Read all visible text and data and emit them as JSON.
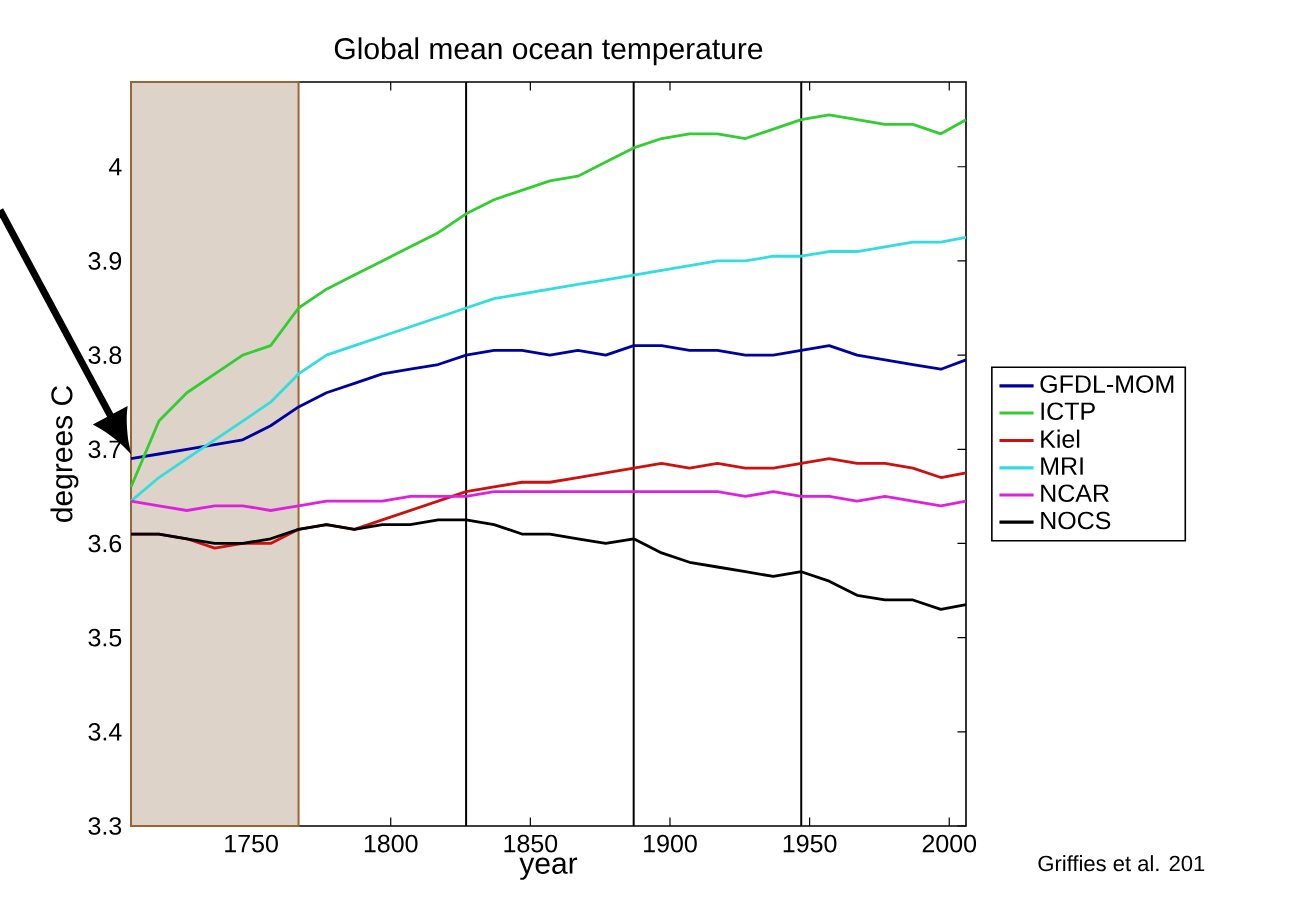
{
  "chart_data": {
    "type": "line",
    "title": "Global mean ocean temperature",
    "xlabel": "year",
    "ylabel": "degrees C",
    "x": [
      1707,
      1717,
      1727,
      1737,
      1747,
      1757,
      1767,
      1777,
      1787,
      1797,
      1807,
      1817,
      1827,
      1837,
      1847,
      1857,
      1867,
      1877,
      1887,
      1897,
      1907,
      1917,
      1927,
      1937,
      1947,
      1957,
      1967,
      1977,
      1987,
      1997,
      2006
    ],
    "series": [
      {
        "name": "GFDL-MOM",
        "color": "#0000a0",
        "values": [
          3.69,
          3.695,
          3.7,
          3.705,
          3.71,
          3.725,
          3.745,
          3.76,
          3.77,
          3.78,
          3.785,
          3.79,
          3.8,
          3.805,
          3.805,
          3.8,
          3.805,
          3.8,
          3.81,
          3.81,
          3.805,
          3.805,
          3.8,
          3.8,
          3.805,
          3.81,
          3.8,
          3.795,
          3.79,
          3.785,
          3.795
        ]
      },
      {
        "name": "ICTP",
        "color": "#33cc33",
        "values": [
          3.66,
          3.73,
          3.76,
          3.78,
          3.8,
          3.81,
          3.85,
          3.87,
          3.885,
          3.9,
          3.915,
          3.93,
          3.95,
          3.965,
          3.975,
          3.985,
          3.99,
          4.005,
          4.02,
          4.03,
          4.035,
          4.035,
          4.03,
          4.04,
          4.05,
          4.055,
          4.05,
          4.045,
          4.045,
          4.035,
          4.05
        ]
      },
      {
        "name": "Kiel",
        "color": "#cc1111",
        "values": [
          3.61,
          3.61,
          3.605,
          3.595,
          3.6,
          3.6,
          3.615,
          3.62,
          3.615,
          3.625,
          3.635,
          3.645,
          3.655,
          3.66,
          3.665,
          3.665,
          3.67,
          3.675,
          3.68,
          3.685,
          3.68,
          3.685,
          3.68,
          3.68,
          3.685,
          3.69,
          3.685,
          3.685,
          3.68,
          3.67,
          3.675
        ]
      },
      {
        "name": "MRI",
        "color": "#33dddd",
        "values": [
          3.645,
          3.67,
          3.69,
          3.71,
          3.73,
          3.75,
          3.78,
          3.8,
          3.81,
          3.82,
          3.83,
          3.84,
          3.85,
          3.86,
          3.865,
          3.87,
          3.875,
          3.88,
          3.885,
          3.89,
          3.895,
          3.9,
          3.9,
          3.905,
          3.905,
          3.91,
          3.91,
          3.915,
          3.92,
          3.92,
          3.925
        ]
      },
      {
        "name": "NCAR",
        "color": "#dd22dd",
        "values": [
          3.645,
          3.64,
          3.635,
          3.64,
          3.64,
          3.635,
          3.64,
          3.645,
          3.645,
          3.645,
          3.65,
          3.65,
          3.65,
          3.655,
          3.655,
          3.655,
          3.655,
          3.655,
          3.655,
          3.655,
          3.655,
          3.655,
          3.65,
          3.655,
          3.65,
          3.65,
          3.645,
          3.65,
          3.645,
          3.64,
          3.645
        ]
      },
      {
        "name": "NOCS",
        "color": "#000000",
        "values": [
          3.61,
          3.61,
          3.605,
          3.6,
          3.6,
          3.605,
          3.615,
          3.62,
          3.615,
          3.62,
          3.62,
          3.625,
          3.625,
          3.62,
          3.61,
          3.61,
          3.605,
          3.6,
          3.605,
          3.59,
          3.58,
          3.575,
          3.57,
          3.565,
          3.57,
          3.56,
          3.545,
          3.54,
          3.54,
          3.53,
          3.535
        ]
      }
    ],
    "xlim": [
      1707,
      2006
    ],
    "ylim": [
      3.3,
      4.09
    ],
    "xticks": [
      1750,
      1800,
      1850,
      1900,
      1950,
      2000
    ],
    "yticks": [
      3.3,
      3.4,
      3.5,
      3.6,
      3.7,
      3.8,
      3.9,
      4
    ],
    "ref_lines": [
      {
        "axis": "x",
        "value": 1827,
        "color": "#000000"
      },
      {
        "axis": "x",
        "value": 1887,
        "color": "#000000"
      },
      {
        "axis": "x",
        "value": 1947,
        "color": "#000000"
      }
    ],
    "bands": [
      {
        "axis": "x",
        "from": 1707,
        "to": 1767,
        "color": "#ddd3c9"
      }
    ],
    "annotations": [
      "Griffies et al. 201"
    ],
    "legend": "right",
    "grid": false,
    "line_style": "solid",
    "marker": "none"
  }
}
